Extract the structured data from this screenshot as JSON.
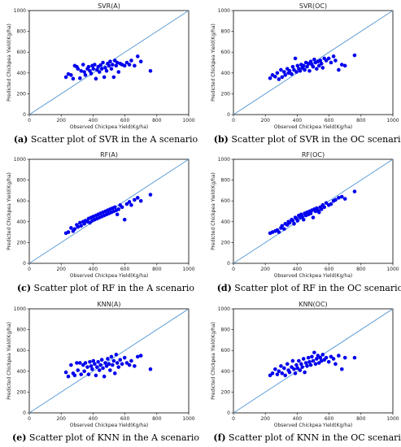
{
  "chart_data": [
    {
      "type": "scatter",
      "title": "SVR(A)",
      "xlabel": "Observed Chickpea Yield(Kg/ha)",
      "ylabel": "Predicted Chickpea Yield(Kg/ha)",
      "xlim": [
        0,
        1000
      ],
      "ylim": [
        0,
        1000
      ],
      "xticks": [
        "0",
        "200",
        "400",
        "600",
        "800",
        "1000"
      ],
      "yticks": [
        "0",
        "200",
        "400",
        "600",
        "800",
        "1000"
      ],
      "reference_line": "y = x",
      "caption_letter": "(a)",
      "caption_text": " Scatter plot of SVR in the A scenario",
      "colors": {
        "points": "#0000ee",
        "reference_line": "#5b9bd5"
      },
      "points": [
        [
          230,
          360
        ],
        [
          245,
          390
        ],
        [
          262,
          380
        ],
        [
          275,
          345
        ],
        [
          285,
          470
        ],
        [
          298,
          460
        ],
        [
          305,
          440
        ],
        [
          318,
          350
        ],
        [
          325,
          420
        ],
        [
          338,
          480
        ],
        [
          345,
          410
        ],
        [
          352,
          380
        ],
        [
          365,
          440
        ],
        [
          372,
          460
        ],
        [
          380,
          420
        ],
        [
          388,
          395
        ],
        [
          395,
          470
        ],
        [
          402,
          440
        ],
        [
          410,
          480
        ],
        [
          418,
          345
        ],
        [
          425,
          430
        ],
        [
          432,
          460
        ],
        [
          440,
          410
        ],
        [
          447,
          475
        ],
        [
          455,
          440
        ],
        [
          462,
          500
        ],
        [
          470,
          360
        ],
        [
          477,
          450
        ],
        [
          485,
          420
        ],
        [
          492,
          490
        ],
        [
          500,
          470
        ],
        [
          507,
          510
        ],
        [
          515,
          440
        ],
        [
          522,
          480
        ],
        [
          530,
          360
        ],
        [
          537,
          520
        ],
        [
          545,
          470
        ],
        [
          552,
          500
        ],
        [
          560,
          410
        ],
        [
          570,
          490
        ],
        [
          582,
          480
        ],
        [
          598,
          470
        ],
        [
          612,
          500
        ],
        [
          628,
          480
        ],
        [
          640,
          520
        ],
        [
          660,
          470
        ],
        [
          680,
          560
        ],
        [
          700,
          510
        ],
        [
          760,
          420
        ]
      ]
    },
    {
      "type": "scatter",
      "title": "SVR(OC)",
      "xlabel": "Observed Chickpea Yield(Kg/ha)",
      "ylabel": "Predicted Chickpea Yield(Kg/ha)",
      "xlim": [
        0,
        1000
      ],
      "ylim": [
        0,
        1000
      ],
      "xticks": [
        "0",
        "200",
        "400",
        "600",
        "800",
        "1000"
      ],
      "yticks": [
        "0",
        "200",
        "400",
        "600",
        "800",
        "1000"
      ],
      "reference_line": "y = x",
      "caption_letter": "(b)",
      "caption_text": " Scatter plot of SVR in the OC scenario",
      "colors": {
        "points": "#0000ee",
        "reference_line": "#5b9bd5"
      },
      "points": [
        [
          230,
          350
        ],
        [
          245,
          380
        ],
        [
          262,
          365
        ],
        [
          275,
          400
        ],
        [
          285,
          340
        ],
        [
          298,
          430
        ],
        [
          305,
          360
        ],
        [
          318,
          410
        ],
        [
          325,
          380
        ],
        [
          338,
          440
        ],
        [
          345,
          400
        ],
        [
          352,
          420
        ],
        [
          365,
          390
        ],
        [
          372,
          460
        ],
        [
          380,
          430
        ],
        [
          388,
          540
        ],
        [
          395,
          410
        ],
        [
          402,
          470
        ],
        [
          410,
          440
        ],
        [
          418,
          420
        ],
        [
          425,
          480
        ],
        [
          432,
          450
        ],
        [
          440,
          470
        ],
        [
          447,
          430
        ],
        [
          455,
          500
        ],
        [
          462,
          460
        ],
        [
          470,
          490
        ],
        [
          477,
          420
        ],
        [
          485,
          510
        ],
        [
          492,
          480
        ],
        [
          500,
          460
        ],
        [
          507,
          530
        ],
        [
          515,
          500
        ],
        [
          522,
          440
        ],
        [
          530,
          510
        ],
        [
          537,
          470
        ],
        [
          545,
          520
        ],
        [
          552,
          490
        ],
        [
          560,
          450
        ],
        [
          570,
          540
        ],
        [
          582,
          520
        ],
        [
          598,
          540
        ],
        [
          612,
          500
        ],
        [
          628,
          560
        ],
        [
          640,
          520
        ],
        [
          660,
          430
        ],
        [
          680,
          480
        ],
        [
          700,
          470
        ],
        [
          760,
          570
        ]
      ]
    },
    {
      "type": "scatter",
      "title": "RF(A)",
      "xlabel": "Observed Chickpea Yield(Kg/ha)",
      "ylabel": "Predicted Chickpea Yield(Kg/ha)",
      "xlim": [
        0,
        1000
      ],
      "ylim": [
        0,
        1000
      ],
      "xticks": [
        "0",
        "200",
        "400",
        "600",
        "800",
        "1000"
      ],
      "yticks": [
        "0",
        "200",
        "400",
        "600",
        "800",
        "1000"
      ],
      "reference_line": "y = x",
      "caption_letter": "(c)",
      "caption_text": " Scatter plot of RF in the A scenario",
      "colors": {
        "points": "#0000ee",
        "reference_line": "#5b9bd5"
      },
      "points": [
        [
          230,
          290
        ],
        [
          245,
          300
        ],
        [
          262,
          340
        ],
        [
          275,
          310
        ],
        [
          285,
          330
        ],
        [
          298,
          370
        ],
        [
          305,
          350
        ],
        [
          318,
          390
        ],
        [
          325,
          360
        ],
        [
          338,
          400
        ],
        [
          345,
          380
        ],
        [
          352,
          410
        ],
        [
          365,
          400
        ],
        [
          372,
          430
        ],
        [
          380,
          390
        ],
        [
          388,
          440
        ],
        [
          395,
          410
        ],
        [
          402,
          450
        ],
        [
          410,
          420
        ],
        [
          418,
          460
        ],
        [
          425,
          430
        ],
        [
          432,
          470
        ],
        [
          440,
          440
        ],
        [
          447,
          480
        ],
        [
          455,
          450
        ],
        [
          462,
          490
        ],
        [
          470,
          460
        ],
        [
          477,
          500
        ],
        [
          485,
          470
        ],
        [
          492,
          510
        ],
        [
          500,
          480
        ],
        [
          507,
          520
        ],
        [
          515,
          490
        ],
        [
          522,
          530
        ],
        [
          530,
          500
        ],
        [
          537,
          540
        ],
        [
          545,
          510
        ],
        [
          552,
          470
        ],
        [
          560,
          520
        ],
        [
          570,
          560
        ],
        [
          582,
          540
        ],
        [
          598,
          420
        ],
        [
          612,
          570
        ],
        [
          628,
          590
        ],
        [
          640,
          560
        ],
        [
          660,
          610
        ],
        [
          680,
          630
        ],
        [
          700,
          600
        ],
        [
          760,
          660
        ]
      ]
    },
    {
      "type": "scatter",
      "title": "RF(OC)",
      "xlabel": "Observed Chickpea Yield(Kg/ha)",
      "ylabel": "Predicted Chickpea Yield(Kg/ha)",
      "xlim": [
        0,
        1000
      ],
      "ylim": [
        0,
        1000
      ],
      "xticks": [
        "0",
        "200",
        "400",
        "600",
        "800",
        "1000"
      ],
      "yticks": [
        "0",
        "200",
        "400",
        "600",
        "800",
        "1000"
      ],
      "reference_line": "y = x",
      "caption_letter": "(d)",
      "caption_text": " Scatter plot of RF in the OC scenario",
      "colors": {
        "points": "#0000ee",
        "reference_line": "#5b9bd5"
      },
      "points": [
        [
          230,
          290
        ],
        [
          245,
          300
        ],
        [
          262,
          310
        ],
        [
          275,
          320
        ],
        [
          285,
          300
        ],
        [
          298,
          340
        ],
        [
          305,
          360
        ],
        [
          318,
          330
        ],
        [
          325,
          380
        ],
        [
          338,
          370
        ],
        [
          345,
          400
        ],
        [
          352,
          390
        ],
        [
          365,
          420
        ],
        [
          372,
          410
        ],
        [
          380,
          380
        ],
        [
          388,
          440
        ],
        [
          395,
          430
        ],
        [
          402,
          410
        ],
        [
          410,
          460
        ],
        [
          418,
          440
        ],
        [
          425,
          470
        ],
        [
          432,
          450
        ],
        [
          440,
          420
        ],
        [
          447,
          480
        ],
        [
          455,
          460
        ],
        [
          462,
          490
        ],
        [
          470,
          470
        ],
        [
          477,
          500
        ],
        [
          485,
          480
        ],
        [
          492,
          510
        ],
        [
          500,
          440
        ],
        [
          507,
          520
        ],
        [
          515,
          500
        ],
        [
          522,
          530
        ],
        [
          530,
          510
        ],
        [
          537,
          490
        ],
        [
          545,
          540
        ],
        [
          552,
          520
        ],
        [
          560,
          560
        ],
        [
          570,
          540
        ],
        [
          582,
          580
        ],
        [
          598,
          560
        ],
        [
          612,
          570
        ],
        [
          628,
          600
        ],
        [
          640,
          610
        ],
        [
          660,
          630
        ],
        [
          680,
          640
        ],
        [
          700,
          620
        ],
        [
          760,
          690
        ]
      ]
    },
    {
      "type": "scatter",
      "title": "KNN(A)",
      "xlabel": "Observed Chickpea Yield(Kg/ha)",
      "ylabel": "Predicted Chickpea Yield(Kg/ha)",
      "xlim": [
        0,
        1000
      ],
      "ylim": [
        0,
        1000
      ],
      "xticks": [
        "0",
        "200",
        "400",
        "600",
        "800",
        "1000"
      ],
      "yticks": [
        "0",
        "200",
        "400",
        "600",
        "800",
        "1000"
      ],
      "reference_line": "y = x",
      "caption_letter": "(e)",
      "caption_text": " Scatter plot of KNN in the A scenario",
      "colors": {
        "points": "#0000ee",
        "reference_line": "#5b9bd5"
      },
      "points": [
        [
          230,
          390
        ],
        [
          245,
          350
        ],
        [
          262,
          460
        ],
        [
          275,
          380
        ],
        [
          285,
          360
        ],
        [
          298,
          480
        ],
        [
          305,
          410
        ],
        [
          318,
          480
        ],
        [
          325,
          370
        ],
        [
          338,
          460
        ],
        [
          345,
          400
        ],
        [
          352,
          480
        ],
        [
          365,
          440
        ],
        [
          372,
          370
        ],
        [
          380,
          490
        ],
        [
          388,
          450
        ],
        [
          395,
          420
        ],
        [
          402,
          500
        ],
        [
          410,
          470
        ],
        [
          418,
          360
        ],
        [
          425,
          440
        ],
        [
          432,
          490
        ],
        [
          440,
          410
        ],
        [
          447,
          460
        ],
        [
          455,
          510
        ],
        [
          462,
          430
        ],
        [
          470,
          350
        ],
        [
          477,
          480
        ],
        [
          485,
          450
        ],
        [
          492,
          520
        ],
        [
          500,
          470
        ],
        [
          507,
          410
        ],
        [
          515,
          540
        ],
        [
          522,
          460
        ],
        [
          530,
          500
        ],
        [
          537,
          380
        ],
        [
          545,
          560
        ],
        [
          552,
          480
        ],
        [
          560,
          440
        ],
        [
          570,
          510
        ],
        [
          582,
          470
        ],
        [
          598,
          530
        ],
        [
          612,
          480
        ],
        [
          628,
          460
        ],
        [
          640,
          500
        ],
        [
          660,
          450
        ],
        [
          680,
          540
        ],
        [
          700,
          550
        ],
        [
          760,
          420
        ]
      ]
    },
    {
      "type": "scatter",
      "title": "KNN(OC)",
      "xlabel": "Observed Chickpea Yield(Kg/ha)",
      "ylabel": "Predicted Chickpea Yield(Kg/ha)",
      "xlim": [
        0,
        1000
      ],
      "ylim": [
        0,
        1000
      ],
      "xticks": [
        "0",
        "200",
        "400",
        "600",
        "800",
        "1000"
      ],
      "yticks": [
        "0",
        "200",
        "400",
        "600",
        "800",
        "1000"
      ],
      "reference_line": "y = x",
      "caption_letter": "(f)",
      "caption_text": " Scatter plot of KNN in the OC scenario",
      "colors": {
        "points": "#0000ee",
        "reference_line": "#5b9bd5"
      },
      "points": [
        [
          230,
          360
        ],
        [
          245,
          380
        ],
        [
          262,
          420
        ],
        [
          275,
          370
        ],
        [
          285,
          400
        ],
        [
          298,
          450
        ],
        [
          305,
          380
        ],
        [
          318,
          430
        ],
        [
          325,
          360
        ],
        [
          338,
          470
        ],
        [
          345,
          410
        ],
        [
          352,
          390
        ],
        [
          365,
          440
        ],
        [
          372,
          500
        ],
        [
          380,
          420
        ],
        [
          388,
          380
        ],
        [
          395,
          460
        ],
        [
          402,
          430
        ],
        [
          410,
          500
        ],
        [
          418,
          410
        ],
        [
          425,
          470
        ],
        [
          432,
          440
        ],
        [
          440,
          520
        ],
        [
          447,
          390
        ],
        [
          455,
          480
        ],
        [
          462,
          450
        ],
        [
          470,
          530
        ],
        [
          477,
          490
        ],
        [
          485,
          460
        ],
        [
          492,
          540
        ],
        [
          500,
          500
        ],
        [
          507,
          580
        ],
        [
          515,
          470
        ],
        [
          522,
          520
        ],
        [
          530,
          550
        ],
        [
          537,
          480
        ],
        [
          545,
          530
        ],
        [
          552,
          500
        ],
        [
          560,
          560
        ],
        [
          570,
          510
        ],
        [
          582,
          530
        ],
        [
          598,
          490
        ],
        [
          612,
          540
        ],
        [
          628,
          520
        ],
        [
          640,
          470
        ],
        [
          660,
          550
        ],
        [
          680,
          420
        ],
        [
          700,
          530
        ],
        [
          760,
          530
        ]
      ]
    }
  ]
}
